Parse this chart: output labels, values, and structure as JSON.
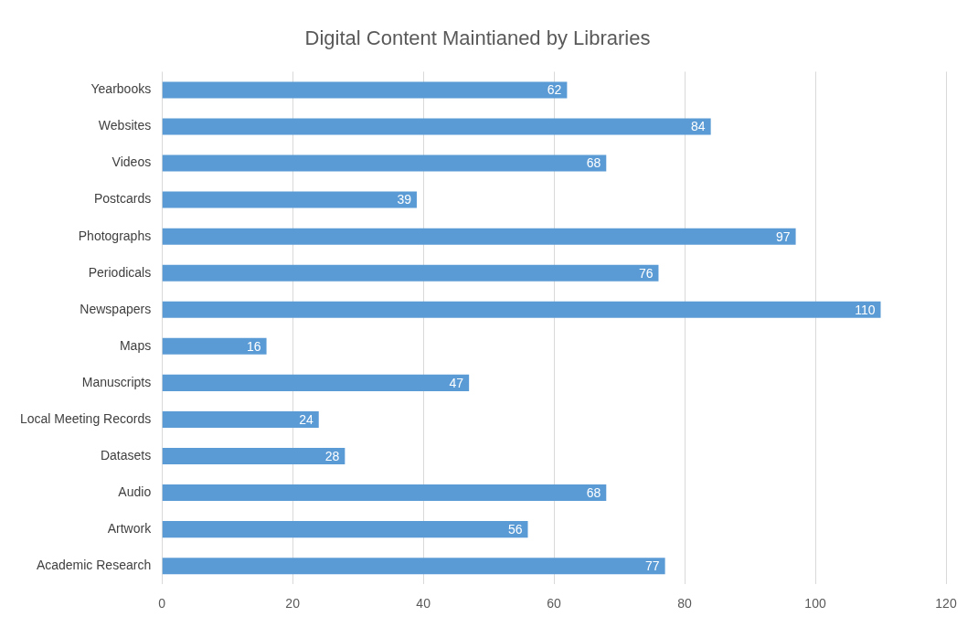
{
  "chart_data": {
    "type": "bar",
    "orientation": "horizontal",
    "title": "Digital Content Maintianed by Libraries",
    "categories": [
      "Yearbooks",
      "Websites",
      "Videos",
      "Postcards",
      "Photographs",
      "Periodicals",
      "Newspapers",
      "Maps",
      "Manuscripts",
      "Local Meeting Records",
      "Datasets",
      "Audio",
      "Artwork",
      "Academic Research"
    ],
    "values": [
      62,
      84,
      68,
      39,
      97,
      76,
      110,
      16,
      47,
      24,
      28,
      68,
      56,
      77
    ],
    "color": "#5b9bd5",
    "xlim": [
      0,
      120
    ],
    "xticks": [
      0,
      20,
      40,
      60,
      80,
      100,
      120
    ],
    "grid": "x",
    "data_labels": true,
    "legend": false
  }
}
